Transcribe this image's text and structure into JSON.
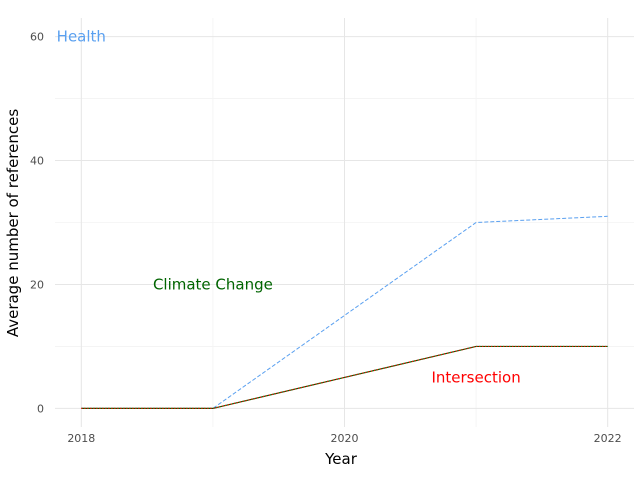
{
  "chart_data": {
    "type": "line",
    "xlabel": "Year",
    "ylabel": "Average number of references",
    "x": [
      2018,
      2019,
      2020,
      2021,
      2022
    ],
    "xticks": [
      "2018",
      "2020",
      "2022"
    ],
    "yticks": [
      "0",
      "20",
      "40",
      "60"
    ],
    "xlim": [
      2017.8,
      2022.2
    ],
    "ylim": [
      -3,
      63
    ],
    "grid": true,
    "legend": "none",
    "series": [
      {
        "name": "Health",
        "values": [
          0,
          0,
          15,
          30,
          31
        ],
        "color": "#5aa0f0",
        "style": "dashed"
      },
      {
        "name": "Climate Change",
        "values": [
          0,
          0,
          5,
          10,
          10
        ],
        "color": "#006400",
        "style": "solid"
      },
      {
        "name": "Intersection",
        "values": [
          0,
          0,
          5,
          10,
          10
        ],
        "color": "#ff0000",
        "style": "dotted"
      }
    ],
    "annotations": [
      {
        "label": "Health",
        "x": 2018,
        "y": 60,
        "color": "#5aa0f0"
      },
      {
        "label": "Climate Change",
        "x": 2019,
        "y": 20,
        "color": "#006400"
      },
      {
        "label": "Intersection",
        "x": 2021,
        "y": 5,
        "color": "#ff0000"
      }
    ]
  }
}
